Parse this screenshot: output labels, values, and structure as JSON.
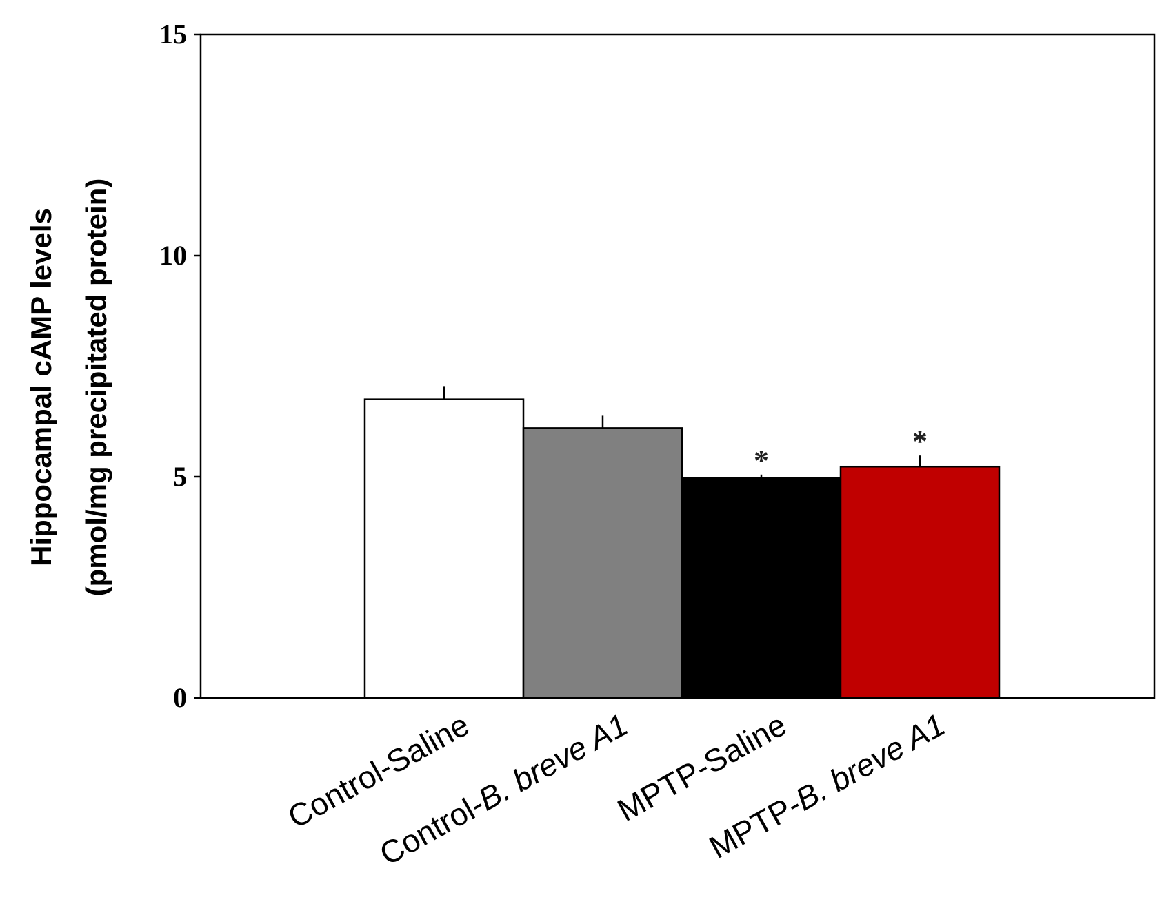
{
  "chart_data": {
    "type": "bar",
    "title": "",
    "xlabel": "",
    "ylabel_lines": [
      "Hippocampal cAMP levels",
      "(pmol/mg precipitated protein)"
    ],
    "ylim": [
      0,
      15
    ],
    "yticks": [
      0,
      5,
      10,
      15
    ],
    "grid": false,
    "legend": "none",
    "categories": [
      {
        "label": "Control-Saline",
        "plain": "Control-Saline",
        "italic": ""
      },
      {
        "label": "Control-B. breve A1",
        "plain": "Control-",
        "italic": "B. breve A1"
      },
      {
        "label": "MPTP-Saline",
        "plain": "MPTP-Saline",
        "italic": ""
      },
      {
        "label": "MPTP-B. breve A1",
        "plain": "MPTP-",
        "italic": "B. breve A1"
      }
    ],
    "values": [
      6.75,
      6.1,
      4.97,
      5.23
    ],
    "errors": [
      0.3,
      0.28,
      0.08,
      0.25
    ],
    "colors": [
      "#ffffff",
      "#808080",
      "#000000",
      "#c00000"
    ],
    "significance": [
      "",
      "",
      "*",
      "*"
    ]
  }
}
